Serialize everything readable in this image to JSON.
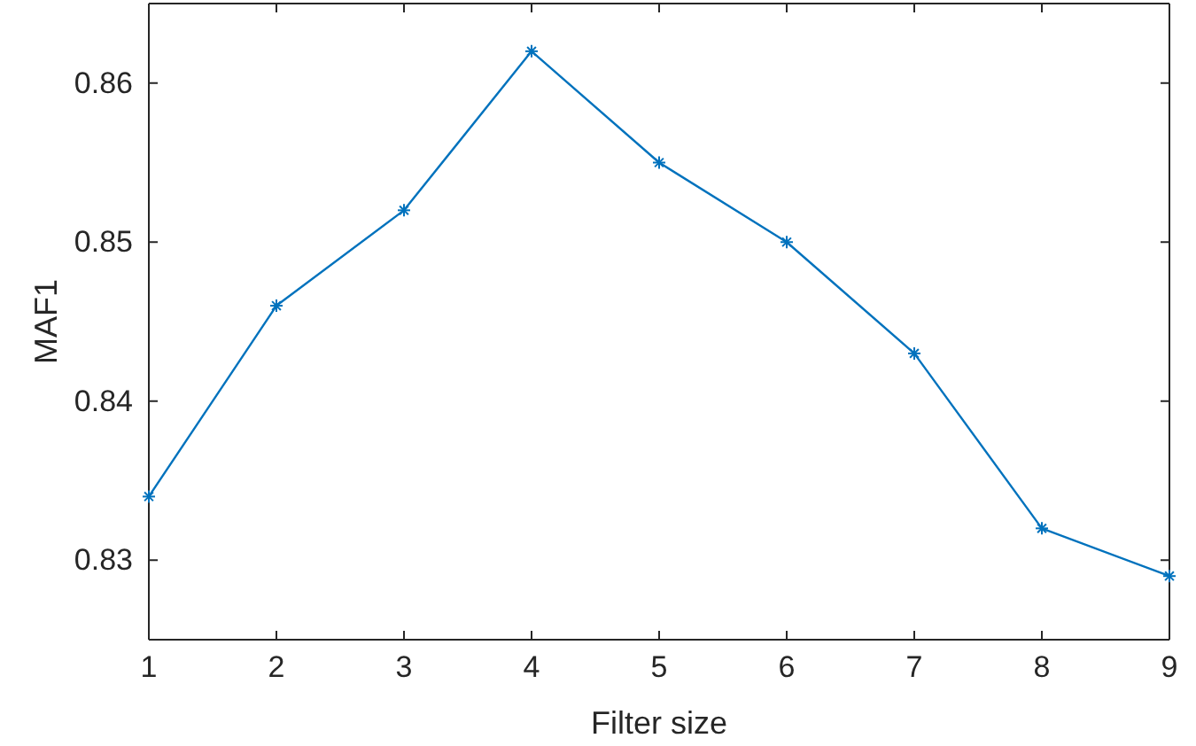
{
  "chart_data": {
    "type": "line",
    "xlabel": "Filter size",
    "ylabel": "MAF1",
    "x": [
      1,
      2,
      3,
      4,
      5,
      6,
      7,
      8,
      9
    ],
    "series": [
      {
        "color": "#0072bd",
        "values": [
          0.834,
          0.846,
          0.852,
          0.862,
          0.855,
          0.85,
          0.843,
          0.832,
          0.829
        ]
      }
    ],
    "xlim": [
      1,
      9
    ],
    "xticks": [
      1,
      2,
      3,
      4,
      5,
      6,
      7,
      8,
      9
    ],
    "ylim": [
      0.825,
      0.865
    ],
    "yticks": [
      0.83,
      0.84,
      0.85,
      0.86
    ],
    "marker": "cross",
    "line_style": "solid",
    "grid": false
  }
}
